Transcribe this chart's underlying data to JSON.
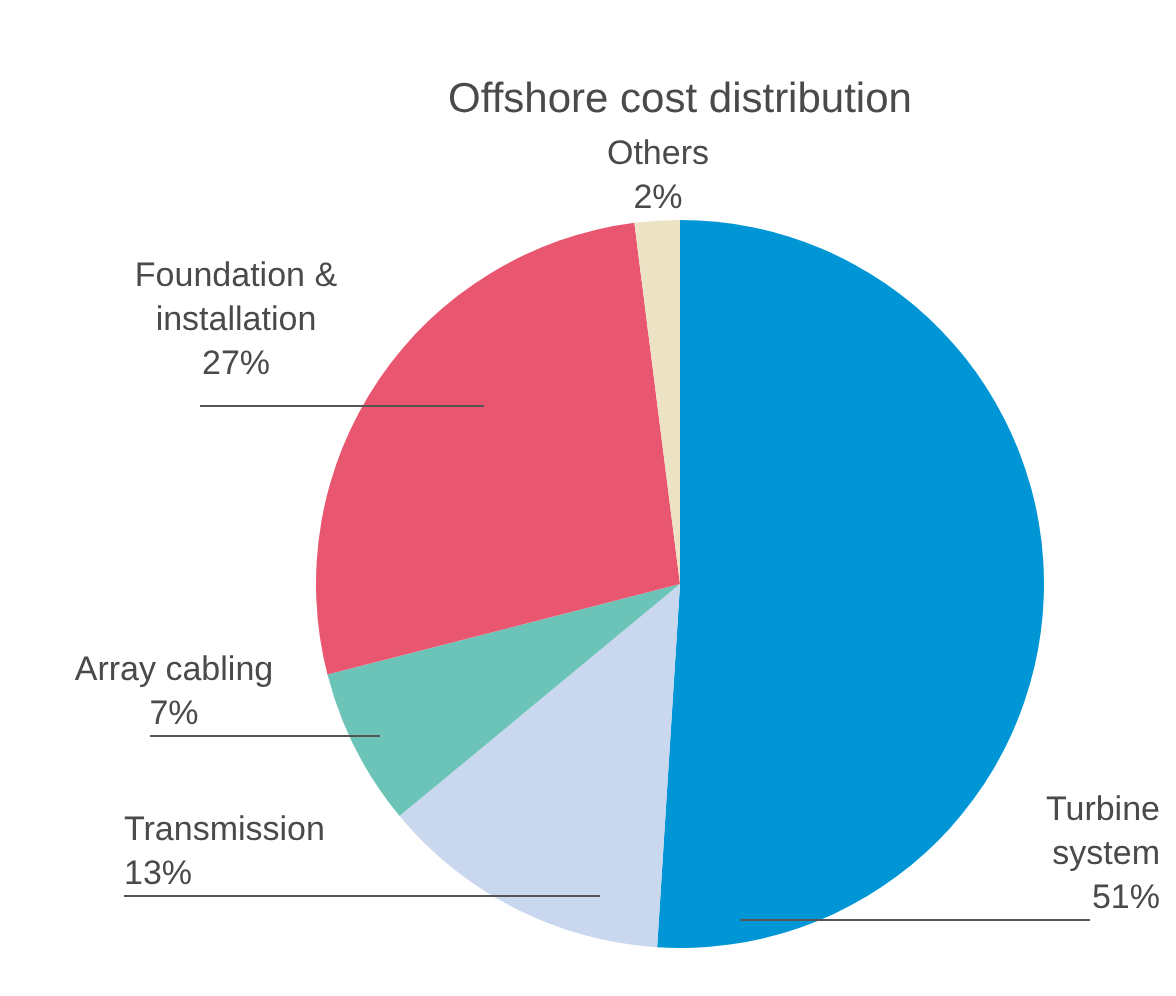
{
  "chart_data": {
    "type": "pie",
    "title": "Offshore cost distribution",
    "categories": [
      "Turbine system",
      "Transmission",
      "Array cabling",
      "Foundation & installation",
      "Others"
    ],
    "values": [
      51,
      13,
      7,
      27,
      2
    ],
    "value_labels": [
      "51%",
      "13%",
      "7%",
      "27%",
      "2%"
    ],
    "colors": [
      "#0096d6",
      "#c9d7ef",
      "#6cc3b7",
      "#e8566f",
      "#ece3c4"
    ]
  }
}
